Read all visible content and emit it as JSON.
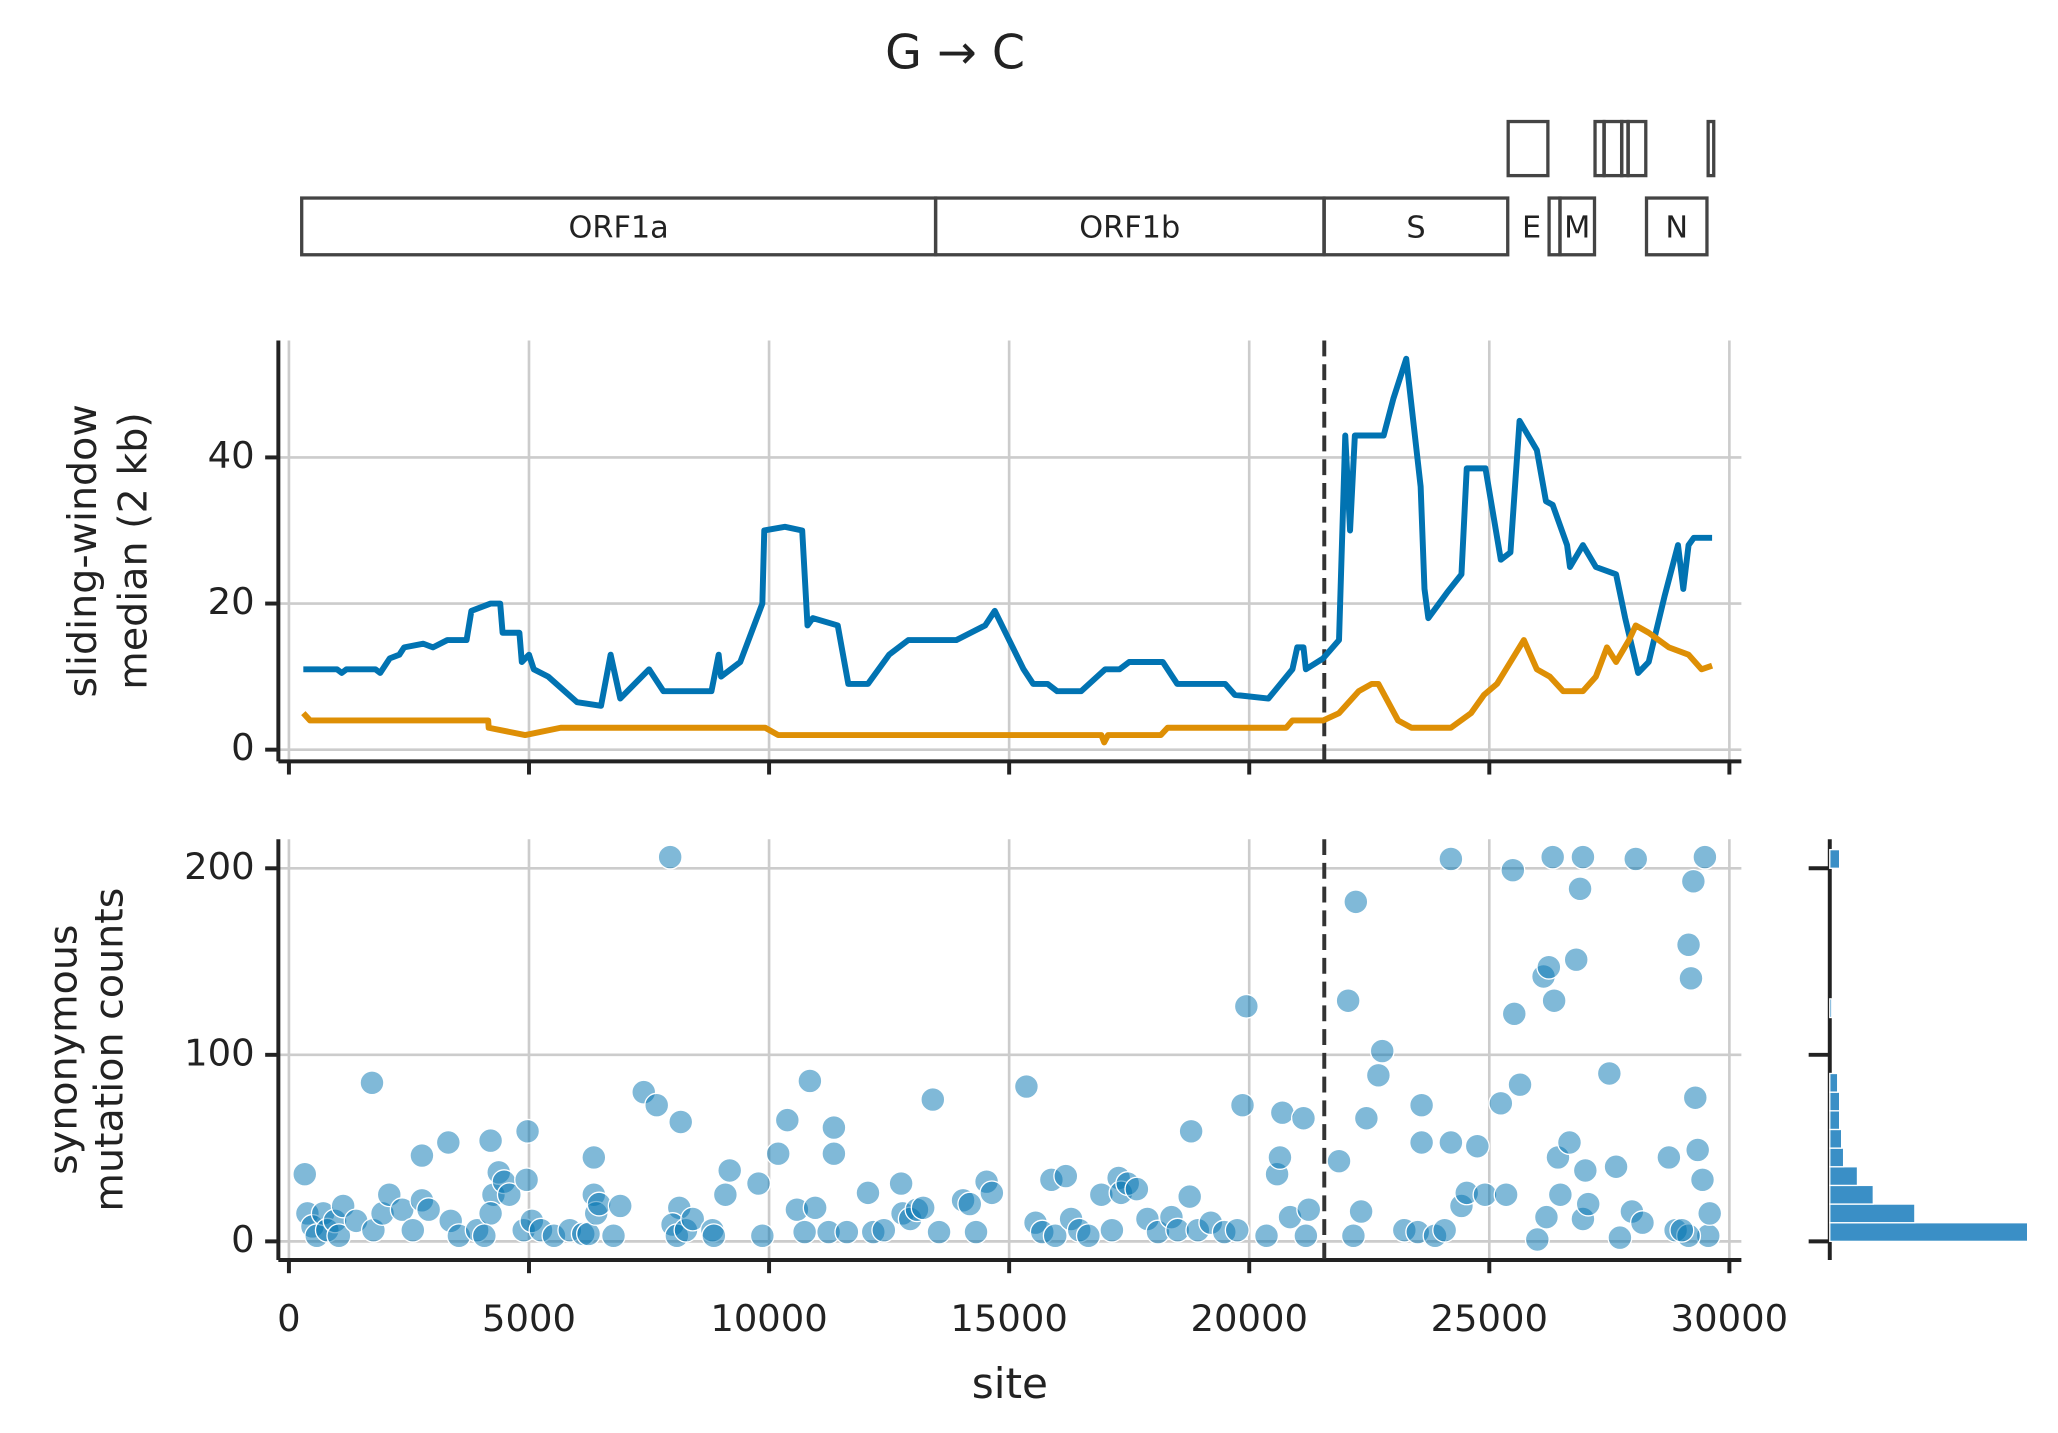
{
  "chart_data": [
    {
      "type": "genes",
      "title": "G → C",
      "genes": [
        {
          "name": "ORF1a",
          "start": 266,
          "end": 13468,
          "row": 0
        },
        {
          "name": "ORF1b",
          "start": 13468,
          "end": 21555,
          "row": 0
        },
        {
          "name": "S",
          "start": 21563,
          "end": 25384,
          "row": 0
        },
        {
          "name": "E",
          "start": 26245,
          "end": 26472,
          "row": 0
        },
        {
          "name": "M",
          "start": 26472,
          "end": 27191,
          "row": 0
        },
        {
          "name": "N",
          "start": 28274,
          "end": 29533,
          "row": 0
        },
        {
          "name": null,
          "start": 25393,
          "end": 26220,
          "row": 1
        },
        {
          "name": null,
          "start": 27202,
          "end": 27387,
          "row": 1
        },
        {
          "name": null,
          "start": 27394,
          "end": 27759,
          "row": 1
        },
        {
          "name": null,
          "start": 27756,
          "end": 27887,
          "row": 1
        },
        {
          "name": null,
          "start": 27894,
          "end": 28259,
          "row": 1
        },
        {
          "name": null,
          "start": 29558,
          "end": 29674,
          "row": 1
        }
      ]
    },
    {
      "type": "line",
      "ylabel": [
        "sliding-window",
        "median (2 kb)"
      ],
      "xlim": [
        -220,
        30250
      ],
      "ylim": [
        -1.6,
        56
      ],
      "xticks": [
        0,
        5000,
        10000,
        15000,
        20000,
        25000,
        30000
      ],
      "yticks": [
        0,
        20,
        40
      ],
      "grid": true,
      "vline": 21563,
      "series": [
        {
          "color": "#0173b2",
          "x": [
            300,
            1000,
            1100,
            1200,
            1800,
            1900,
            2100,
            2300,
            2400,
            2800,
            3000,
            3300,
            3700,
            3800,
            4200,
            4400,
            4450,
            4800,
            4850,
            5000,
            5100,
            5400,
            6000,
            6500,
            6700,
            6900,
            7500,
            7800,
            8200,
            8800,
            8950,
            9000,
            9400,
            9860,
            9900,
            10330,
            10690,
            10800,
            10910,
            11430,
            11650,
            12060,
            12500,
            12900,
            13900,
            14500,
            14700,
            15000,
            15300,
            15500,
            15800,
            16000,
            16500,
            17000,
            17300,
            17500,
            18200,
            18500,
            19500,
            19700,
            20400,
            20900,
            21000,
            21130,
            21180,
            21540,
            21870,
            22000,
            22100,
            22200,
            22300,
            22800,
            23000,
            23270,
            23570,
            23650,
            23730,
            24120,
            24420,
            24530,
            24920,
            25240,
            25440,
            25630,
            25990,
            26180,
            26320,
            26620,
            26680,
            26950,
            27220,
            27640,
            27830,
            28100,
            28320,
            28650,
            28930,
            29040,
            29150,
            29260,
            29640
          ],
          "values": [
            11,
            11,
            10.5,
            11,
            11,
            10.5,
            12.5,
            13,
            14,
            14.5,
            14,
            15,
            15,
            19,
            20,
            20,
            16,
            16,
            12,
            13,
            11,
            10,
            6.5,
            6,
            13,
            7,
            11,
            8,
            8,
            8,
            13,
            10,
            12,
            20,
            30,
            30.5,
            30,
            17,
            18,
            17,
            9,
            9,
            13,
            15,
            15,
            17,
            19,
            15,
            11,
            9,
            9,
            8,
            8,
            11,
            11,
            12,
            12,
            9,
            9,
            7.5,
            7,
            11,
            14,
            14,
            11,
            12.5,
            15,
            43,
            30,
            43,
            43,
            43,
            48,
            53.5,
            36,
            22,
            18,
            21.5,
            24,
            38.5,
            38.5,
            26,
            27,
            45,
            41,
            34,
            33.5,
            28,
            25,
            28,
            25,
            24,
            18,
            10.5,
            12,
            21,
            28,
            22,
            28,
            29,
            29
          ]
        },
        {
          "color": "#de8f05",
          "x": [
            300,
            440,
            4150,
            4160,
            4920,
            5660,
            9920,
            10190,
            16920,
            16980,
            17060,
            18160,
            18300,
            20770,
            20900,
            21540,
            21870,
            22280,
            22550,
            22690,
            23100,
            23380,
            24200,
            24620,
            24890,
            25160,
            25440,
            25720,
            25990,
            26260,
            26540,
            26950,
            27220,
            27450,
            27640,
            27910,
            28050,
            28320,
            28740,
            29150,
            29420,
            29640
          ],
          "values": [
            5,
            4,
            4,
            3,
            2,
            3,
            3,
            2,
            2,
            1,
            2,
            2,
            3,
            3,
            4,
            4,
            5,
            8,
            9,
            9,
            4,
            3,
            3,
            5,
            7.5,
            9,
            12,
            15,
            11,
            10,
            8,
            8,
            10,
            14,
            12,
            15,
            17,
            16,
            14,
            13,
            11,
            11.5
          ]
        }
      ]
    },
    {
      "type": "scatter",
      "xlabel": "site",
      "ylabel": [
        "synonymous",
        "mutation counts"
      ],
      "color": "#0173b2",
      "xlim": [
        -220,
        30250
      ],
      "ylim": [
        -10,
        215.6
      ],
      "xticks": [
        0,
        5000,
        10000,
        15000,
        20000,
        25000,
        30000
      ],
      "yticks": [
        0,
        100,
        200
      ],
      "grid": true,
      "vline": 21563,
      "x": [
        330,
        385,
        490,
        580,
        715,
        800,
        960,
        1130,
        1040,
        1400,
        1730,
        1760,
        1950,
        2090,
        2360,
        2580,
        2770,
        2770,
        2910,
        3320,
        3370,
        3540,
        3920,
        4200,
        4260,
        4370,
        4480,
        4590,
        4200,
        4070,
        4890,
        4970,
        4950,
        5060,
        5250,
        5520,
        5850,
        6130,
        6240,
        6350,
        6350,
        6400,
        6460,
        6760,
        6900,
        7390,
        7660,
        7940,
        8130,
        8160,
        7990,
        8080,
        8270,
        8410,
        8820,
        8850,
        9090,
        9180,
        9780,
        9860,
        10190,
        10380,
        10580,
        10850,
        10960,
        10740,
        11240,
        11350,
        11350,
        11620,
        12060,
        12170,
        12390,
        12750,
        12780,
        12940,
        13080,
        13210,
        13410,
        13540,
        14040,
        14180,
        14310,
        14530,
        14640,
        15360,
        15550,
        15690,
        15880,
        15960,
        16180,
        16290,
        16460,
        16650,
        16920,
        17140,
        17280,
        17330,
        17470,
        17660,
        17880,
        18100,
        18380,
        18510,
        18760,
        18790,
        18930,
        19200,
        19480,
        19750,
        19860,
        19940,
        20360,
        20580,
        20640,
        20690,
        20850,
        21130,
        21180,
        21240,
        21870,
        22060,
        22170,
        22220,
        22330,
        22440,
        22690,
        22770,
        23230,
        23510,
        23590,
        23590,
        23870,
        24070,
        24200,
        24200,
        24420,
        24530,
        24750,
        24910,
        25240,
        25350,
        25490,
        25520,
        25640,
        26000,
        26130,
        26190,
        26240,
        26320,
        26350,
        26430,
        26480,
        26670,
        26810,
        26890,
        26950,
        27000,
        26950,
        27060,
        27500,
        27640,
        27720,
        28050,
        27970,
        28190,
        28740,
        28880,
        29150,
        29200,
        29250,
        29290,
        29340,
        29440,
        29490,
        29560,
        29590,
        29150,
        29010
      ],
      "values": [
        36,
        15,
        8,
        3,
        15,
        6,
        11,
        19,
        3,
        11,
        85,
        6,
        15,
        25,
        17,
        6,
        46,
        22,
        17,
        53,
        11,
        3,
        6,
        54,
        25,
        37,
        32,
        25,
        15,
        3,
        6,
        59,
        33,
        11,
        6,
        3,
        6,
        4,
        4,
        45,
        25,
        15,
        20,
        3,
        19,
        80,
        73,
        206,
        18,
        64,
        9,
        3,
        6,
        12,
        6,
        3,
        25,
        38,
        31,
        3,
        47,
        65,
        17,
        86,
        18,
        5,
        5,
        61,
        47,
        5,
        26,
        5,
        6,
        31,
        15,
        12,
        17,
        18,
        76,
        5,
        22,
        20,
        5,
        32,
        26,
        83,
        10,
        5,
        33,
        3,
        35,
        12,
        6,
        3,
        25,
        6,
        34,
        26,
        31,
        28,
        12,
        5,
        13,
        6,
        24,
        59,
        6,
        10,
        5,
        6,
        73,
        126,
        3,
        36,
        45,
        69,
        13,
        66,
        3,
        17,
        43,
        129,
        3,
        182,
        16,
        66,
        89,
        102,
        6,
        5,
        73,
        53,
        3,
        6,
        205,
        53,
        19,
        26,
        51,
        25,
        74,
        25,
        199,
        122,
        84,
        1,
        142,
        13,
        147,
        206,
        129,
        45,
        25,
        53,
        151,
        189,
        206,
        38,
        12,
        20,
        90,
        40,
        2,
        205,
        16,
        10,
        45,
        6,
        159,
        141,
        193,
        77,
        49,
        33,
        206,
        3,
        15,
        3,
        6
      ]
    },
    {
      "type": "histogram",
      "orientation": "horizontal",
      "color": "#3a8fc6",
      "bins": [
        0,
        10,
        20,
        30,
        40,
        50,
        60,
        70,
        80,
        90,
        100,
        110,
        120,
        130,
        140,
        150,
        160,
        170,
        180,
        190,
        200,
        210
      ],
      "values": [
        100,
        43,
        22,
        14,
        7,
        6,
        5,
        5,
        4,
        0,
        0,
        0,
        1,
        0,
        0,
        0,
        0,
        0,
        0,
        0,
        5
      ],
      "xlim": [
        0,
        100
      ],
      "ylim": [
        -10,
        215.6
      ],
      "yticks": [
        0,
        100,
        200
      ]
    }
  ]
}
